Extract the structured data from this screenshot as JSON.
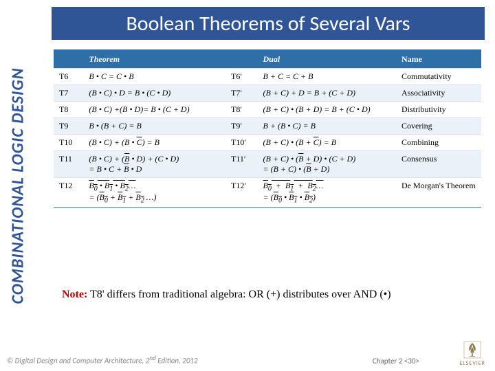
{
  "sidebar": {
    "text": "COMBINATIONAL LOGIC DESIGN",
    "color": "#2f5597"
  },
  "title": {
    "text": "Boolean Theorems of Several Vars",
    "bg": "#2f5597",
    "fg": "#ffffff"
  },
  "table": {
    "header_bg": "#2f6fa7",
    "row_alt_bg": "#eaf1f8",
    "border_top": "#2f6fa7",
    "headers": {
      "theorem": "Theorem",
      "dual": "Dual",
      "name": "Name"
    },
    "rows": [
      {
        "id": "T6",
        "thm": "B • C = C • B",
        "did": "T6′",
        "dual": "B + C = C + B",
        "name": "Commutativity",
        "alt": false
      },
      {
        "id": "T7",
        "thm": "(B • C) • D = B • (C • D)",
        "did": "T7′",
        "dual": "(B + C) + D = B + (C + D)",
        "name": "Associativity",
        "alt": true
      },
      {
        "id": "T8",
        "thm": "(B • C) +(B • D)= B • (C + D)",
        "did": "T8′",
        "dual": "(B + C) • (B + D) = B + (C • D)",
        "name": "Distributivity",
        "alt": false
      },
      {
        "id": "T9",
        "thm": "B • (B + C) = B",
        "did": "T9′",
        "dual": "B + (B • C) = B",
        "name": "Covering",
        "alt": true
      },
      {
        "id": "T10",
        "thm": "(B • C) + (B • C̅) = B",
        "did": "T10′",
        "dual": "(B + C) • (B + C̅) = B",
        "name": "Combining",
        "alt": false
      },
      {
        "id": "T11",
        "thm": "(B • C) + (B̅ • D) + (C • D)\n= B • C + B̅ • D",
        "did": "T11′",
        "dual": "(B + C) • (B̅ + D) • (C + D)\n= (B + C) • (B̅ + D)",
        "name": "Consensus",
        "alt": true
      },
      {
        "id": "T12",
        "thm_html": "<span class='ov'>B<sub>0</sub> • B<sub>1</sub> • B<sub>2</sub>…</span><br>= (<span class='ov'>B<sub>0</sub></span> + <span class='ov'>B<sub>1</sub></span> + <span class='ov'>B<sub>2</sub></span> …)",
        "did": "T12′",
        "dual_html": "<span class='ov'>B<sub>0</sub> &nbsp;+&nbsp; B<sub>1</sub> &nbsp;+&nbsp; B<sub>2</sub>…</span><br>= (<span class='ov'>B<sub>0</sub></span> • <span class='ov'>B<sub>1</sub></span> • <span class='ov'>B<sub>2</sub></span>)",
        "name": "De Morgan's Theorem",
        "alt": false
      }
    ]
  },
  "note": {
    "label": "Note:",
    "label_color": "#c00000",
    "text": " T8' differs from traditional algebra: OR (+) distributes over AND (•)"
  },
  "footer": {
    "left_pre": "© Digital Design and Computer Architecture, ",
    "left_ed": "2",
    "left_sup": "nd",
    "left_post": " Edition, 2012",
    "center": "Chapter 2 <30>",
    "logo": "ELSEVIER"
  }
}
